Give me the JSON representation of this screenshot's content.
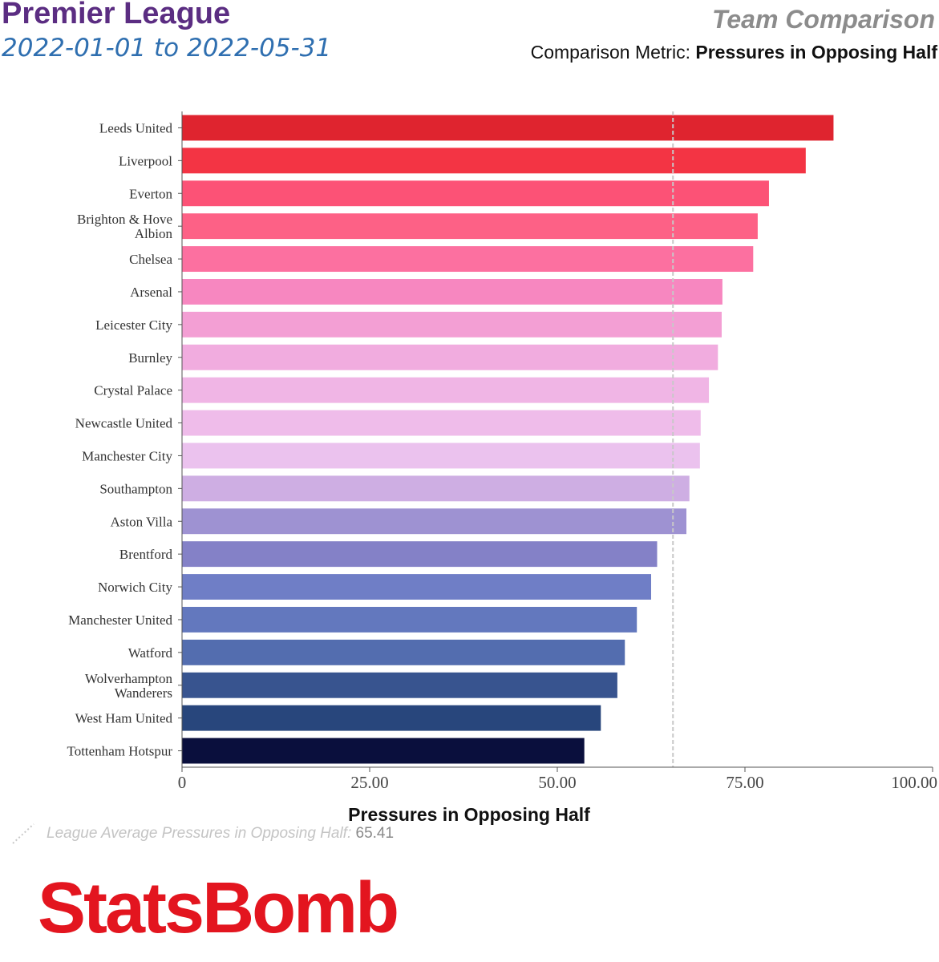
{
  "header": {
    "league": "Premier League",
    "date_range": "2022-01-01 to 2022-05-31",
    "view_name": "Team Comparison",
    "metric_prefix": "Comparison Metric: ",
    "metric_name": "Pressures in Opposing Half"
  },
  "footer": {
    "average_label": "League Average Pressures in Opposing Half: ",
    "average_value": "65.41",
    "brand": "StatsBomb"
  },
  "chart_data": {
    "type": "bar",
    "orientation": "horizontal",
    "title": "",
    "xlabel": "Pressures in Opposing Half",
    "ylabel": "",
    "xlim": [
      0,
      100
    ],
    "x_ticks": [
      "0",
      "25.00",
      "50.00",
      "75.00",
      "100.00"
    ],
    "x_tick_values": [
      0,
      25,
      50,
      75,
      100
    ],
    "reference_line": {
      "value": 65.41,
      "style": "dashed",
      "color": "#c8c8c8"
    },
    "grid": false,
    "categories": [
      "Leeds United",
      "Liverpool",
      "Everton",
      "Brighton & Hove Albion",
      "Chelsea",
      "Arsenal",
      "Leicester City",
      "Burnley",
      "Crystal Palace",
      "Newcastle United",
      "Manchester City",
      "Southampton",
      "Aston Villa",
      "Brentford",
      "Norwich City",
      "Manchester United",
      "Watford",
      "Wolverhampton Wanderers",
      "West Ham United",
      "Tottenham Hotspur"
    ],
    "category_lines": [
      [
        "Leeds United"
      ],
      [
        "Liverpool"
      ],
      [
        "Everton"
      ],
      [
        "Brighton & Hove",
        "Albion"
      ],
      [
        "Chelsea"
      ],
      [
        "Arsenal"
      ],
      [
        "Leicester City"
      ],
      [
        "Burnley"
      ],
      [
        "Crystal Palace"
      ],
      [
        "Newcastle United"
      ],
      [
        "Manchester City"
      ],
      [
        "Southampton"
      ],
      [
        "Aston Villa"
      ],
      [
        "Brentford"
      ],
      [
        "Norwich City"
      ],
      [
        "Manchester United"
      ],
      [
        "Watford"
      ],
      [
        "Wolverhampton",
        "Wanderers"
      ],
      [
        "West Ham United"
      ],
      [
        "Tottenham Hotspur"
      ]
    ],
    "values": [
      86.8,
      83.1,
      78.2,
      76.7,
      76.1,
      72.0,
      71.9,
      71.4,
      70.2,
      69.1,
      69.0,
      67.6,
      67.2,
      63.3,
      62.5,
      60.6,
      59.0,
      58.0,
      55.8,
      53.6
    ],
    "colors": [
      "#df242f",
      "#f33444",
      "#fc5276",
      "#fd6186",
      "#fc70a0",
      "#f787c0",
      "#f39fd4",
      "#f1acdf",
      "#f0b5e5",
      "#efbcea",
      "#ebc2ee",
      "#ceaee3",
      "#9e92d2",
      "#8481c7",
      "#6f7ec6",
      "#6378be",
      "#536daf",
      "#38548f",
      "#28467c",
      "#0a0f3d"
    ]
  }
}
